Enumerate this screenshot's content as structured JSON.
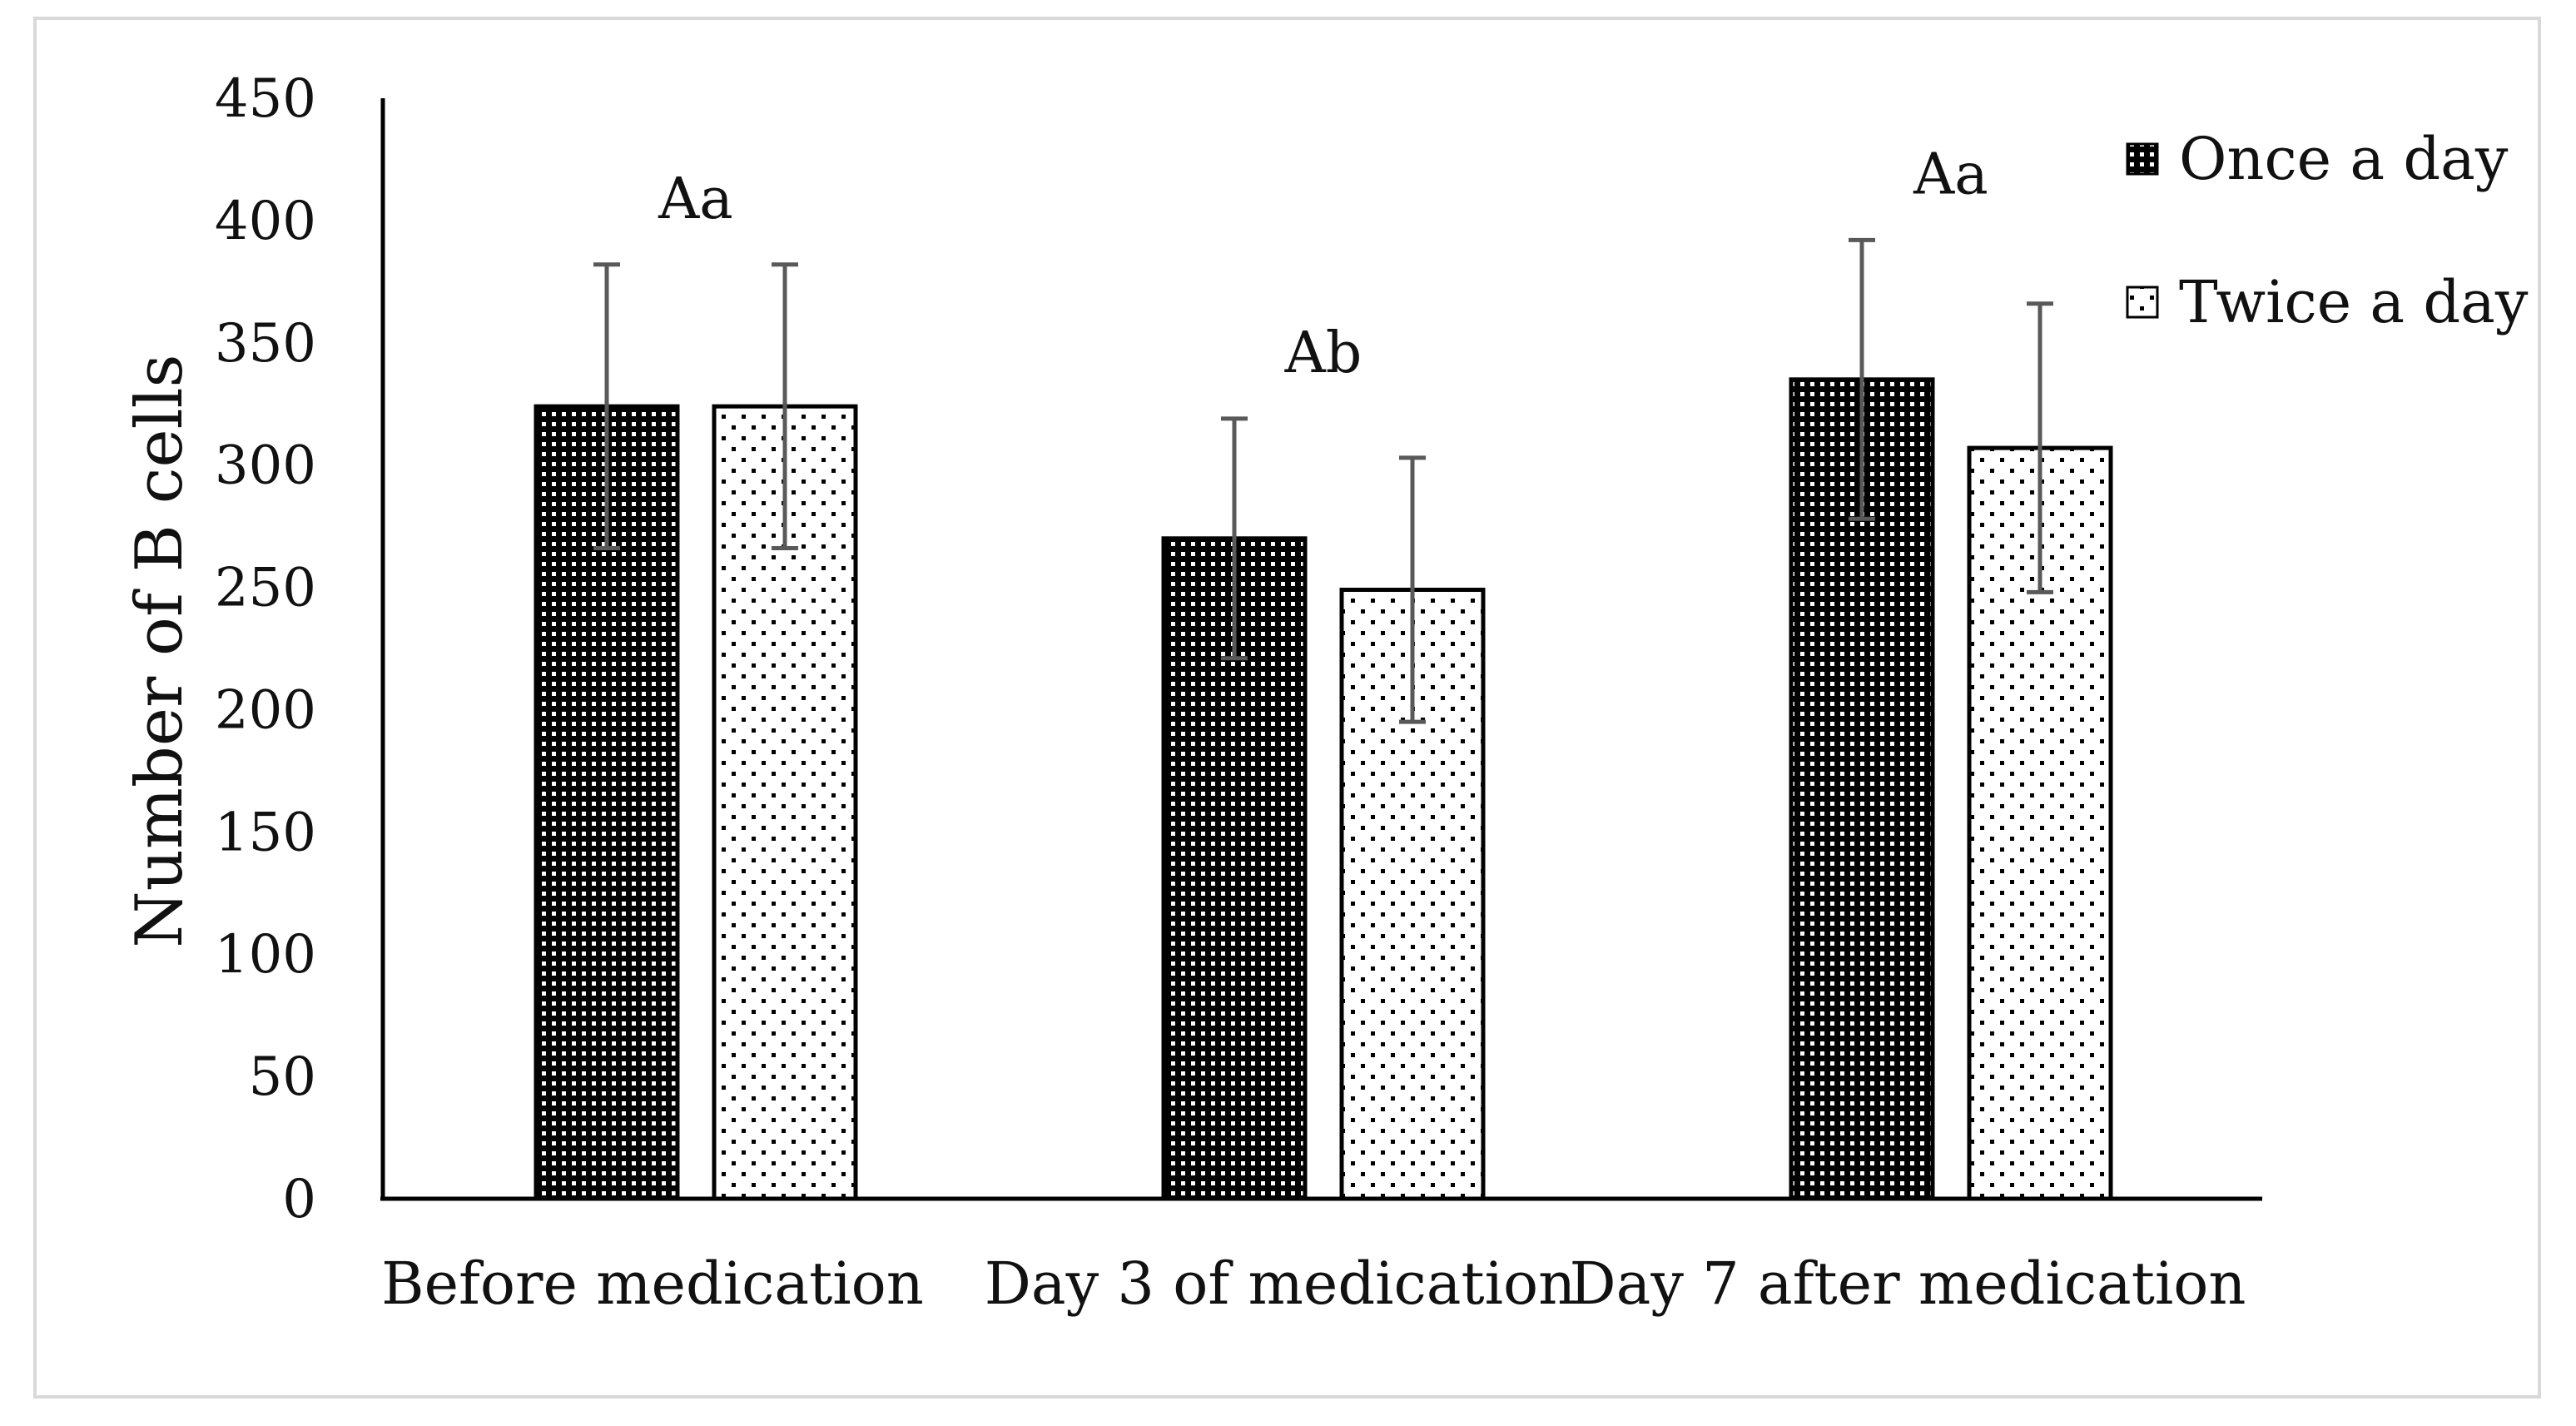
{
  "chart_data": {
    "type": "bar",
    "title": "",
    "xlabel": "",
    "ylabel": "Number of B cells",
    "ylim": [
      0,
      450
    ],
    "yticks": [
      0,
      50,
      100,
      150,
      200,
      250,
      300,
      350,
      400,
      450
    ],
    "categories": [
      "Before medication",
      "Day 3 of medication",
      "Day 7 after medication"
    ],
    "series": [
      {
        "name": "Once a day",
        "pattern": "dense dots on black",
        "values": [
          324,
          270,
          335
        ],
        "errors": [
          58,
          49,
          57
        ]
      },
      {
        "name": "Twice a day",
        "pattern": "sparse dots on white",
        "values": [
          324,
          249,
          307
        ],
        "errors": [
          58,
          54,
          59
        ]
      }
    ],
    "annotations": [
      {
        "category": "Before medication",
        "text": "Aa"
      },
      {
        "category": "Day 3 of medication",
        "text": "Ab"
      },
      {
        "category": "Day 7 after medication",
        "text": "Aa"
      }
    ],
    "grid": false,
    "legend_position": "top-right",
    "colors": {
      "bar_fill_dark": "#000000",
      "bar_fill_light": "#ffffff",
      "error_bar": "#595959",
      "axis": "#000000",
      "frame": "#d9d9d9"
    }
  }
}
